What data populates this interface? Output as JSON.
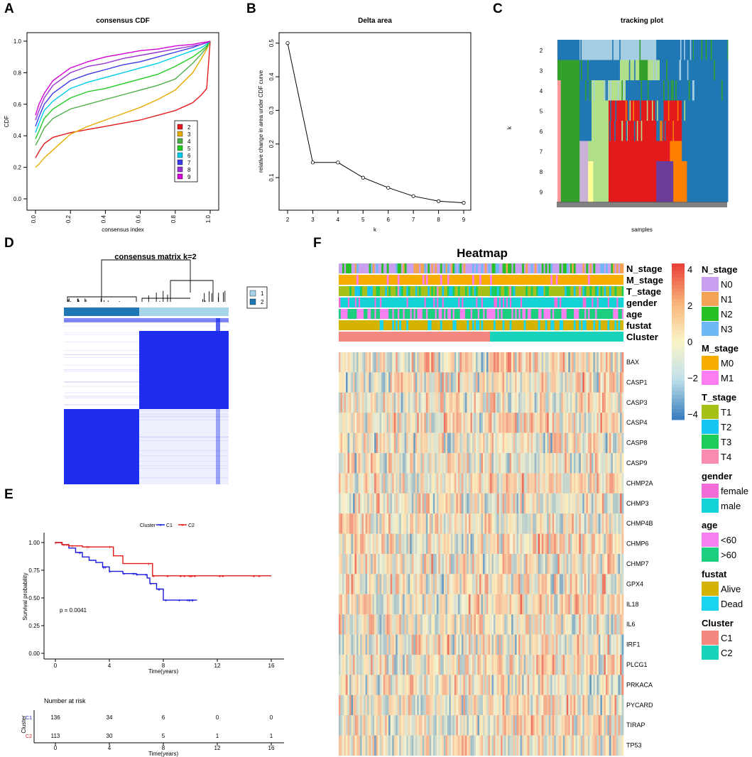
{
  "panel_labels": [
    "A",
    "B",
    "C",
    "D",
    "E",
    "F"
  ],
  "colors": {
    "k2": "#e41a1c",
    "k3": "#e6ab02",
    "k4": "#4daf4a",
    "k5": "#22cc22",
    "k6": "#00cdee",
    "k7": "#3b3be8",
    "k8": "#9a33d4",
    "k9": "#d400d4",
    "blue_dark": "#1f2eee",
    "cluster1": "#a6d5ea",
    "cluster2": "#1f78b4",
    "km_c1": "#1a1adc",
    "km_c2": "#e21a1a",
    "hm_low": "#3a7fbf",
    "hm_mid": "#fbf5c8",
    "hm_high": "#e9423a"
  },
  "chart_data": [
    {
      "id": "A",
      "type": "line",
      "title": "consensus CDF",
      "xlabel": "consensus index",
      "ylabel": "CDF",
      "xlim": [
        0,
        1
      ],
      "ylim": [
        0,
        1
      ],
      "xticks": [
        "0.0",
        "0.2",
        "0.4",
        "0.6",
        "0.8",
        "1.0"
      ],
      "yticks": [
        "0.0",
        "0.2",
        "0.4",
        "0.6",
        "0.8",
        "1.0"
      ],
      "legend_position": "right",
      "x": [
        0,
        0.02,
        0.05,
        0.1,
        0.2,
        0.3,
        0.4,
        0.5,
        0.6,
        0.7,
        0.8,
        0.9,
        0.95,
        0.98,
        1.0
      ],
      "series": [
        {
          "name": "2",
          "values": [
            0.26,
            0.3,
            0.35,
            0.39,
            0.42,
            0.44,
            0.46,
            0.48,
            0.5,
            0.53,
            0.56,
            0.61,
            0.66,
            0.7,
            1.0
          ]
        },
        {
          "name": "3",
          "values": [
            0.2,
            0.22,
            0.26,
            0.31,
            0.41,
            0.46,
            0.5,
            0.54,
            0.58,
            0.63,
            0.69,
            0.8,
            0.89,
            0.95,
            1.0
          ]
        },
        {
          "name": "4",
          "values": [
            0.34,
            0.38,
            0.45,
            0.51,
            0.57,
            0.6,
            0.63,
            0.66,
            0.69,
            0.72,
            0.76,
            0.86,
            0.92,
            0.96,
            1.0
          ]
        },
        {
          "name": "5",
          "values": [
            0.38,
            0.43,
            0.51,
            0.57,
            0.64,
            0.68,
            0.7,
            0.73,
            0.76,
            0.79,
            0.84,
            0.9,
            0.94,
            0.97,
            1.0
          ]
        },
        {
          "name": "6",
          "values": [
            0.42,
            0.48,
            0.56,
            0.62,
            0.7,
            0.74,
            0.77,
            0.8,
            0.83,
            0.86,
            0.9,
            0.94,
            0.96,
            0.98,
            1.0
          ]
        },
        {
          "name": "7",
          "values": [
            0.46,
            0.52,
            0.6,
            0.67,
            0.75,
            0.79,
            0.82,
            0.85,
            0.87,
            0.9,
            0.93,
            0.96,
            0.98,
            0.99,
            1.0
          ]
        },
        {
          "name": "8",
          "values": [
            0.5,
            0.56,
            0.64,
            0.72,
            0.8,
            0.84,
            0.86,
            0.89,
            0.91,
            0.93,
            0.95,
            0.97,
            0.98,
            0.99,
            1.0
          ]
        },
        {
          "name": "9",
          "values": [
            0.53,
            0.6,
            0.67,
            0.75,
            0.83,
            0.87,
            0.9,
            0.92,
            0.94,
            0.95,
            0.97,
            0.98,
            0.99,
            0.995,
            1.0
          ]
        }
      ]
    },
    {
      "id": "B",
      "type": "line",
      "title": "Delta area",
      "xlabel": "k",
      "ylabel": "relative change in area under CDF curve",
      "x": [
        2,
        3,
        4,
        5,
        6,
        7,
        8,
        9
      ],
      "values": [
        0.5,
        0.145,
        0.145,
        0.1,
        0.07,
        0.045,
        0.03,
        0.025
      ],
      "xlim": [
        2,
        9
      ],
      "ylim": [
        0.02,
        0.51
      ],
      "xticks": [
        "2",
        "3",
        "4",
        "5",
        "6",
        "7",
        "8",
        "9"
      ],
      "yticks": [
        "0.1",
        "0.2",
        "0.3",
        "0.4",
        "0.5"
      ]
    },
    {
      "id": "C",
      "type": "heatmap",
      "title": "tracking plot",
      "xlabel": "samples",
      "ylabel": "k",
      "rows": [
        "2",
        "3",
        "4",
        "5",
        "6",
        "7",
        "8",
        "9"
      ]
    },
    {
      "id": "D",
      "type": "heatmap",
      "title": "consensus matrix k=2",
      "legend": [
        "1",
        "2"
      ]
    },
    {
      "id": "E",
      "type": "line",
      "title": "",
      "legend_title": "Cluster",
      "xlabel": "Time(years)",
      "ylabel": "Survival probability",
      "xlim": [
        0,
        16
      ],
      "ylim": [
        0,
        1
      ],
      "xticks": [
        "0",
        "4",
        "8",
        "12",
        "16"
      ],
      "yticks": [
        "0.00",
        "0.25",
        "0.50",
        "0.75",
        "1.00"
      ],
      "pvalue": "p = 0.0041",
      "series": [
        {
          "name": "C1",
          "times": [
            0,
            0.5,
            1,
            1.5,
            2,
            2.5,
            3,
            3.5,
            4,
            5,
            6,
            6.8,
            7,
            7.5,
            8,
            9,
            10.5
          ],
          "values": [
            1.0,
            0.98,
            0.95,
            0.91,
            0.87,
            0.84,
            0.82,
            0.78,
            0.74,
            0.72,
            0.71,
            0.68,
            0.63,
            0.58,
            0.48,
            0.48,
            0.48
          ]
        },
        {
          "name": "C2",
          "times": [
            0,
            0.5,
            1,
            2,
            3,
            4,
            4.3,
            5,
            6,
            7,
            7.2,
            8,
            10,
            12,
            14,
            16
          ],
          "values": [
            1.0,
            0.98,
            0.97,
            0.96,
            0.96,
            0.96,
            0.88,
            0.81,
            0.81,
            0.81,
            0.7,
            0.7,
            0.7,
            0.7,
            0.7,
            0.7
          ]
        }
      ],
      "risk_table": {
        "title": "Number at risk",
        "xlabel": "Time(years)",
        "ylabel": "Cluster",
        "rows": [
          {
            "name": "C1",
            "values": [
              "136",
              "34",
              "6",
              "0",
              "0"
            ]
          },
          {
            "name": "C2",
            "values": [
              "113",
              "30",
              "5",
              "1",
              "1"
            ]
          }
        ]
      }
    },
    {
      "id": "F",
      "type": "heatmap",
      "title": "Heatmap",
      "annotation_rows": [
        "N_stage",
        "M_stage",
        "T_stage",
        "gender",
        "age",
        "fustat",
        "Cluster"
      ],
      "genes": [
        "BAX",
        "CASP1",
        "CASP3",
        "CASP4",
        "CASP8",
        "CASP9",
        "CHMP2A",
        "CHMP3",
        "CHMP4B",
        "CHMP6",
        "CHMP7",
        "GPX4",
        "IL18",
        "IL6",
        "IRF1",
        "PLCG1",
        "PRKACA",
        "PYCARD",
        "TIRAP",
        "TP53"
      ],
      "colorbar_ticks": [
        "4",
        "2",
        "0",
        "−2",
        "−4"
      ],
      "legends": [
        {
          "title": "N_stage",
          "items": [
            {
              "label": "N0",
              "color": "#c9a0f0"
            },
            {
              "label": "N1",
              "color": "#f4a256"
            },
            {
              "label": "N2",
              "color": "#27c127"
            },
            {
              "label": "N3",
              "color": "#6eb8f5"
            }
          ]
        },
        {
          "title": "M_stage",
          "items": [
            {
              "label": "M0",
              "color": "#f6ad00"
            },
            {
              "label": "M1",
              "color": "#fc7ef2"
            }
          ]
        },
        {
          "title": "T_stage",
          "items": [
            {
              "label": "T1",
              "color": "#a6c018"
            },
            {
              "label": "T2",
              "color": "#16c6f2"
            },
            {
              "label": "T3",
              "color": "#1ecc59"
            },
            {
              "label": "T4",
              "color": "#f98ab2"
            }
          ]
        },
        {
          "title": "gender",
          "items": [
            {
              "label": "female",
              "color": "#f16cd7"
            },
            {
              "label": "male",
              "color": "#13d3d6"
            }
          ]
        },
        {
          "title": "age",
          "items": [
            {
              "label": "<60",
              "color": "#f780f0"
            },
            {
              "label": ">60",
              "color": "#1ccf7e"
            }
          ]
        },
        {
          "title": "fustat",
          "items": [
            {
              "label": "Alive",
              "color": "#d4b400"
            },
            {
              "label": "Dead",
              "color": "#18d4ee"
            }
          ]
        },
        {
          "title": "Cluster",
          "items": [
            {
              "label": "C1",
              "color": "#f4877f"
            },
            {
              "label": "C2",
              "color": "#17d3bc"
            }
          ]
        }
      ]
    }
  ]
}
